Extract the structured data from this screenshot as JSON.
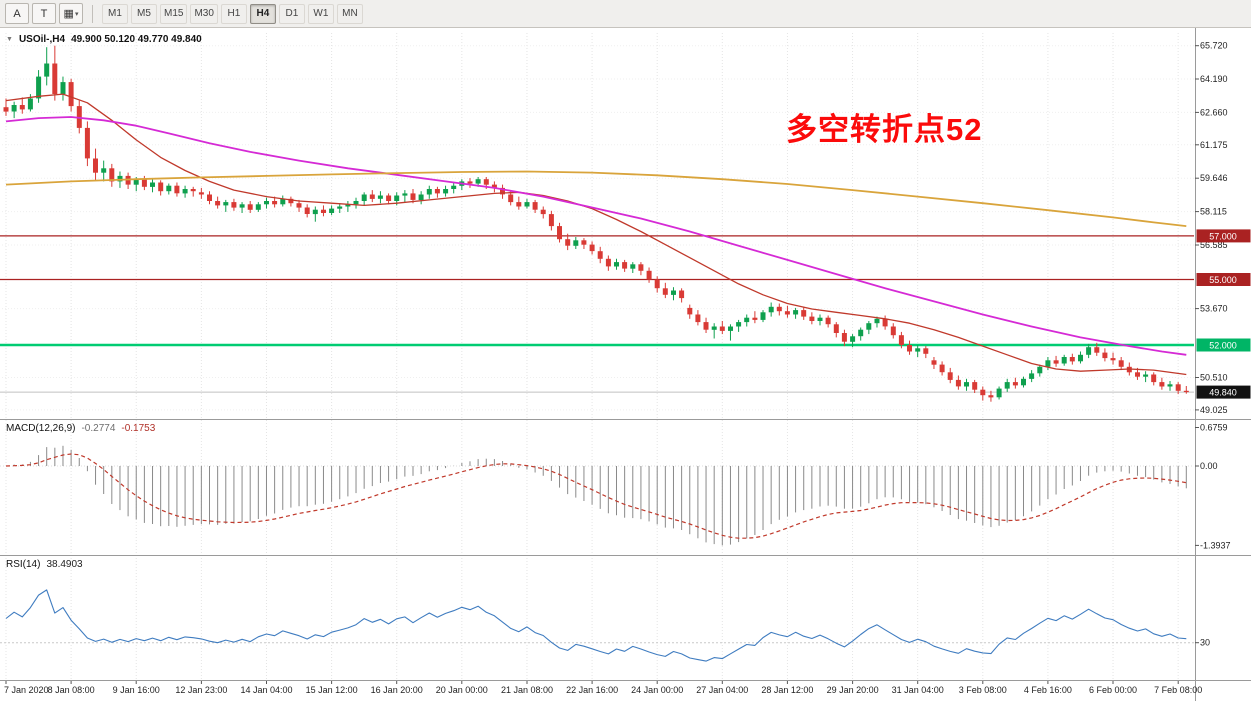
{
  "toolbar": {
    "tools": [
      {
        "name": "pointer-tool",
        "label": "A"
      },
      {
        "name": "text-tool",
        "label": "T"
      },
      {
        "name": "objects-tool",
        "label": "▦",
        "caret": "▾"
      }
    ],
    "timeframes": [
      {
        "label": "M1"
      },
      {
        "label": "M5"
      },
      {
        "label": "M15"
      },
      {
        "label": "M30"
      },
      {
        "label": "H1"
      },
      {
        "label": "H4",
        "active": true
      },
      {
        "label": "D1"
      },
      {
        "label": "W1"
      },
      {
        "label": "MN"
      }
    ]
  },
  "header": {
    "symbol_title": "USOil-,H4",
    "ohlc_text": "49.900 50.120 49.770 49.840"
  },
  "annotation": {
    "text": "多空转折点52"
  },
  "macd": {
    "title": "MACD(12,26,9)",
    "value_main": "-0.2774",
    "value_signal": "-0.1753",
    "params": [
      12,
      26,
      9
    ],
    "axis_labels": [
      {
        "text": "0.6759",
        "value": 0.6759
      },
      {
        "text": "0.00",
        "value": 0
      },
      {
        "text": "-1.3937",
        "value": -1.3937
      }
    ]
  },
  "rsi": {
    "title": "RSI(14)",
    "value": "38.4903",
    "period": 14,
    "levels": [
      {
        "text": "30",
        "value": 30
      }
    ]
  },
  "colors": {
    "bull": "#0fa04e",
    "bear": "#d93a35",
    "ma_fast": "#c0392b",
    "ma_mid": "#d52ad5",
    "ma_slow": "#d9a43b",
    "macd_hist": "#8a8a8a",
    "macd_signal": "#c0392b",
    "rsi_line": "#3f7cc0",
    "level_red": "#aa2222",
    "level_green": "#00cc72",
    "current_price_line": "#c0c0c0",
    "annotation_red": "#fb0b0b"
  },
  "chart_data": {
    "type": "candlestick",
    "symbol": "USOil",
    "timeframe": "H4",
    "label_step": 8,
    "time_labels": [
      "7 Jan 2020",
      "8 Jan 08:00",
      "9 Jan 16:00",
      "12 Jan 23:00",
      "14 Jan 04:00",
      "15 Jan 12:00",
      "16 Jan 20:00",
      "20 Jan 00:00",
      "21 Jan 08:00",
      "22 Jan 16:00",
      "24 Jan 00:00",
      "27 Jan 04:00",
      "28 Jan 12:00",
      "29 Jan 20:00",
      "31 Jan 04:00",
      "3 Feb 08:00",
      "4 Feb 16:00",
      "6 Feb 00:00",
      "7 Feb 08:00"
    ],
    "price_axis_labels": [
      {
        "text": "65.720",
        "price": 65.72
      },
      {
        "text": "64.190",
        "price": 64.19
      },
      {
        "text": "62.660",
        "price": 62.66
      },
      {
        "text": "61.175",
        "price": 61.175
      },
      {
        "text": "59.646",
        "price": 59.646
      },
      {
        "text": "58.115",
        "price": 58.115
      },
      {
        "text": "56.585",
        "price": 56.585
      },
      {
        "text": "53.670",
        "price": 53.67
      },
      {
        "text": "50.510",
        "price": 50.51
      },
      {
        "text": "49.025",
        "price": 49.025
      }
    ],
    "badges": [
      {
        "text": "57.000",
        "price": 57.0,
        "bg": "#aa2222",
        "fg": "#ffffff"
      },
      {
        "text": "55.000",
        "price": 55.0,
        "bg": "#aa2222",
        "fg": "#ffffff"
      },
      {
        "text": "52.000",
        "price": 52.0,
        "bg": "#00b566",
        "fg": "#ffffff"
      },
      {
        "text": "49.840",
        "price": 49.84,
        "bg": "#111111",
        "fg": "#ffffff"
      }
    ],
    "horizontal_lines": [
      {
        "price": 57.0,
        "color": "#aa2222",
        "width": 1.3
      },
      {
        "price": 55.0,
        "color": "#aa2222",
        "width": 1.3
      },
      {
        "price": 52.0,
        "color": "#00cc72",
        "width": 2.5
      },
      {
        "price": 49.84,
        "color": "#c0c0c0",
        "width": 1
      }
    ],
    "moving_averages": {
      "fast": [
        [
          0,
          63.2
        ],
        [
          4,
          63.4
        ],
        [
          7,
          63.5
        ],
        [
          10,
          63.1
        ],
        [
          13,
          62.3
        ],
        [
          16,
          61.4
        ],
        [
          19,
          60.6
        ],
        [
          22,
          60.0
        ],
        [
          25,
          59.5
        ],
        [
          28,
          59.1
        ],
        [
          32,
          58.8
        ],
        [
          36,
          58.6
        ],
        [
          40,
          58.5
        ],
        [
          44,
          58.4
        ],
        [
          48,
          58.5
        ],
        [
          52,
          58.65
        ],
        [
          56,
          58.8
        ],
        [
          60,
          58.95
        ],
        [
          63,
          59.0
        ],
        [
          66,
          58.85
        ],
        [
          69,
          58.6
        ],
        [
          72,
          58.25
        ],
        [
          75,
          57.75
        ],
        [
          78,
          57.2
        ],
        [
          81,
          56.6
        ],
        [
          84,
          56.0
        ],
        [
          87,
          55.4
        ],
        [
          90,
          54.8
        ],
        [
          93,
          54.3
        ],
        [
          96,
          53.9
        ],
        [
          99,
          53.65
        ],
        [
          102,
          53.5
        ],
        [
          105,
          53.35
        ],
        [
          108,
          53.2
        ],
        [
          111,
          53.0
        ],
        [
          114,
          52.7
        ],
        [
          117,
          52.35
        ],
        [
          120,
          51.95
        ],
        [
          123,
          51.55
        ],
        [
          126,
          51.15
        ],
        [
          129,
          50.9
        ],
        [
          132,
          50.8
        ],
        [
          135,
          50.85
        ],
        [
          138,
          50.9
        ],
        [
          141,
          50.85
        ],
        [
          145,
          50.65
        ]
      ],
      "mid": [
        [
          0,
          62.25
        ],
        [
          4,
          62.4
        ],
        [
          8,
          62.45
        ],
        [
          12,
          62.3
        ],
        [
          16,
          62.05
        ],
        [
          20,
          61.7
        ],
        [
          25,
          61.25
        ],
        [
          30,
          60.85
        ],
        [
          36,
          60.45
        ],
        [
          42,
          60.1
        ],
        [
          48,
          59.8
        ],
        [
          54,
          59.5
        ],
        [
          60,
          59.2
        ],
        [
          66,
          58.8
        ],
        [
          72,
          58.3
        ],
        [
          78,
          57.8
        ],
        [
          84,
          57.2
        ],
        [
          90,
          56.55
        ],
        [
          96,
          55.9
        ],
        [
          102,
          55.25
        ],
        [
          108,
          54.6
        ],
        [
          114,
          54.0
        ],
        [
          120,
          53.4
        ],
        [
          126,
          52.85
        ],
        [
          132,
          52.35
        ],
        [
          138,
          51.95
        ],
        [
          142,
          51.7
        ],
        [
          145,
          51.55
        ]
      ],
      "slow": [
        [
          0,
          59.35
        ],
        [
          8,
          59.5
        ],
        [
          16,
          59.6
        ],
        [
          24,
          59.68
        ],
        [
          32,
          59.75
        ],
        [
          40,
          59.82
        ],
        [
          48,
          59.88
        ],
        [
          56,
          59.93
        ],
        [
          64,
          59.95
        ],
        [
          72,
          59.9
        ],
        [
          80,
          59.78
        ],
        [
          88,
          59.6
        ],
        [
          96,
          59.38
        ],
        [
          104,
          59.1
        ],
        [
          112,
          58.8
        ],
        [
          120,
          58.5
        ],
        [
          128,
          58.18
        ],
        [
          136,
          57.85
        ],
        [
          141,
          57.62
        ],
        [
          145,
          57.45
        ]
      ]
    },
    "candles": [
      [
        62.9,
        63.3,
        62.5,
        62.7
      ],
      [
        62.7,
        63.15,
        62.4,
        63.0
      ],
      [
        63.0,
        63.35,
        62.6,
        62.8
      ],
      [
        62.8,
        63.5,
        62.7,
        63.3
      ],
      [
        63.3,
        64.6,
        63.1,
        64.3
      ],
      [
        64.3,
        65.65,
        63.9,
        64.9
      ],
      [
        64.9,
        65.72,
        63.2,
        63.5
      ],
      [
        63.5,
        64.3,
        63.2,
        64.05
      ],
      [
        64.05,
        64.2,
        62.7,
        62.95
      ],
      [
        62.95,
        63.2,
        61.7,
        61.95
      ],
      [
        61.95,
        62.25,
        60.2,
        60.55
      ],
      [
        60.55,
        61.0,
        59.55,
        59.9
      ],
      [
        59.9,
        60.45,
        59.5,
        60.1
      ],
      [
        60.1,
        60.3,
        59.25,
        59.5
      ],
      [
        59.5,
        59.95,
        59.2,
        59.75
      ],
      [
        59.75,
        59.9,
        59.15,
        59.35
      ],
      [
        59.35,
        59.7,
        59.05,
        59.6
      ],
      [
        59.6,
        59.75,
        59.1,
        59.25
      ],
      [
        59.25,
        59.6,
        59.0,
        59.45
      ],
      [
        59.45,
        59.55,
        58.85,
        59.05
      ],
      [
        59.05,
        59.4,
        58.9,
        59.3
      ],
      [
        59.3,
        59.45,
        58.8,
        58.95
      ],
      [
        58.95,
        59.3,
        58.75,
        59.15
      ],
      [
        59.15,
        59.25,
        58.8,
        59.05
      ],
      [
        59.0,
        59.2,
        58.7,
        58.9
      ],
      [
        58.9,
        59.05,
        58.45,
        58.6
      ],
      [
        58.6,
        58.8,
        58.25,
        58.4
      ],
      [
        58.4,
        58.65,
        58.1,
        58.55
      ],
      [
        58.55,
        58.7,
        58.15,
        58.3
      ],
      [
        58.3,
        58.55,
        58.05,
        58.45
      ],
      [
        58.45,
        58.6,
        58.05,
        58.2
      ],
      [
        58.2,
        58.55,
        58.1,
        58.45
      ],
      [
        58.45,
        58.75,
        58.25,
        58.6
      ],
      [
        58.6,
        58.8,
        58.3,
        58.45
      ],
      [
        58.45,
        58.85,
        58.35,
        58.7
      ],
      [
        58.7,
        58.8,
        58.35,
        58.5
      ],
      [
        58.5,
        58.65,
        58.1,
        58.3
      ],
      [
        58.3,
        58.45,
        57.85,
        58.0
      ],
      [
        58.0,
        58.35,
        57.65,
        58.2
      ],
      [
        58.2,
        58.4,
        57.9,
        58.05
      ],
      [
        58.05,
        58.4,
        57.95,
        58.25
      ],
      [
        58.25,
        58.5,
        58.05,
        58.35
      ],
      [
        58.35,
        58.6,
        58.1,
        58.45
      ],
      [
        58.45,
        58.75,
        58.25,
        58.6
      ],
      [
        58.6,
        59.0,
        58.4,
        58.9
      ],
      [
        58.9,
        59.1,
        58.55,
        58.7
      ],
      [
        58.7,
        59.05,
        58.5,
        58.85
      ],
      [
        58.85,
        58.95,
        58.45,
        58.6
      ],
      [
        58.6,
        59.0,
        58.4,
        58.85
      ],
      [
        58.85,
        59.1,
        58.55,
        58.95
      ],
      [
        58.95,
        59.15,
        58.5,
        58.65
      ],
      [
        58.65,
        59.05,
        58.45,
        58.9
      ],
      [
        58.9,
        59.3,
        58.7,
        59.15
      ],
      [
        59.15,
        59.25,
        58.75,
        58.95
      ],
      [
        58.95,
        59.3,
        58.8,
        59.15
      ],
      [
        59.15,
        59.45,
        58.95,
        59.3
      ],
      [
        59.3,
        59.6,
        59.1,
        59.5
      ],
      [
        59.5,
        59.65,
        59.2,
        59.4
      ],
      [
        59.4,
        59.7,
        59.25,
        59.6
      ],
      [
        59.6,
        59.7,
        59.15,
        59.35
      ],
      [
        59.35,
        59.5,
        59.0,
        59.2
      ],
      [
        59.2,
        59.35,
        58.7,
        58.9
      ],
      [
        58.9,
        59.05,
        58.4,
        58.55
      ],
      [
        58.55,
        58.8,
        58.2,
        58.35
      ],
      [
        58.35,
        58.7,
        58.25,
        58.55
      ],
      [
        58.55,
        58.65,
        58.05,
        58.2
      ],
      [
        58.2,
        58.35,
        57.8,
        58.0
      ],
      [
        58.0,
        58.15,
        57.25,
        57.45
      ],
      [
        57.45,
        57.6,
        56.7,
        56.85
      ],
      [
        56.85,
        57.1,
        56.35,
        56.55
      ],
      [
        56.55,
        56.95,
        56.4,
        56.8
      ],
      [
        56.8,
        56.9,
        56.4,
        56.6
      ],
      [
        56.6,
        56.75,
        56.15,
        56.3
      ],
      [
        56.3,
        56.5,
        55.75,
        55.95
      ],
      [
        55.95,
        56.1,
        55.4,
        55.6
      ],
      [
        55.6,
        55.95,
        55.45,
        55.8
      ],
      [
        55.8,
        55.9,
        55.35,
        55.5
      ],
      [
        55.5,
        55.8,
        55.3,
        55.7
      ],
      [
        55.7,
        55.8,
        55.2,
        55.4
      ],
      [
        55.4,
        55.55,
        54.85,
        55.0
      ],
      [
        55.0,
        55.15,
        54.4,
        54.6
      ],
      [
        54.6,
        54.85,
        54.15,
        54.3
      ],
      [
        54.3,
        54.65,
        54.05,
        54.5
      ],
      [
        54.5,
        54.6,
        53.95,
        54.15
      ],
      [
        53.7,
        53.85,
        53.2,
        53.4
      ],
      [
        53.4,
        53.6,
        52.9,
        53.05
      ],
      [
        53.05,
        53.25,
        52.55,
        52.7
      ],
      [
        52.7,
        53.0,
        52.3,
        52.85
      ],
      [
        52.85,
        53.1,
        52.5,
        52.65
      ],
      [
        52.65,
        52.95,
        52.2,
        52.85
      ],
      [
        52.85,
        53.15,
        52.6,
        53.05
      ],
      [
        53.05,
        53.4,
        52.85,
        53.25
      ],
      [
        53.25,
        53.55,
        53.0,
        53.15
      ],
      [
        53.15,
        53.6,
        53.05,
        53.5
      ],
      [
        53.5,
        53.95,
        53.3,
        53.75
      ],
      [
        53.75,
        53.9,
        53.35,
        53.55
      ],
      [
        53.55,
        53.8,
        53.25,
        53.4
      ],
      [
        53.4,
        53.7,
        53.2,
        53.6
      ],
      [
        53.6,
        53.75,
        53.15,
        53.3
      ],
      [
        53.3,
        53.5,
        52.95,
        53.1
      ],
      [
        53.1,
        53.4,
        52.9,
        53.25
      ],
      [
        53.25,
        53.35,
        52.8,
        52.95
      ],
      [
        52.95,
        53.05,
        52.35,
        52.55
      ],
      [
        52.55,
        52.7,
        51.95,
        52.15
      ],
      [
        52.15,
        52.5,
        51.9,
        52.4
      ],
      [
        52.4,
        52.8,
        52.2,
        52.7
      ],
      [
        52.7,
        53.1,
        52.5,
        53.0
      ],
      [
        53.0,
        53.3,
        52.8,
        53.2
      ],
      [
        53.2,
        53.35,
        52.7,
        52.85
      ],
      [
        52.85,
        53.0,
        52.3,
        52.45
      ],
      [
        52.45,
        52.6,
        51.85,
        52.0
      ],
      [
        52.0,
        52.2,
        51.55,
        51.7
      ],
      [
        51.7,
        52.0,
        51.45,
        51.85
      ],
      [
        51.85,
        51.95,
        51.4,
        51.6
      ],
      [
        51.3,
        51.45,
        50.9,
        51.1
      ],
      [
        51.1,
        51.25,
        50.6,
        50.75
      ],
      [
        50.75,
        50.95,
        50.25,
        50.4
      ],
      [
        50.4,
        50.6,
        49.95,
        50.1
      ],
      [
        50.1,
        50.45,
        49.9,
        50.3
      ],
      [
        50.3,
        50.4,
        49.8,
        49.95
      ],
      [
        49.95,
        50.1,
        49.45,
        49.7
      ],
      [
        49.7,
        49.9,
        49.4,
        49.6
      ],
      [
        49.6,
        50.1,
        49.5,
        50.0
      ],
      [
        50.0,
        50.45,
        49.85,
        50.3
      ],
      [
        50.3,
        50.5,
        50.0,
        50.15
      ],
      [
        50.15,
        50.55,
        50.05,
        50.45
      ],
      [
        50.45,
        50.85,
        50.3,
        50.7
      ],
      [
        50.7,
        51.1,
        50.55,
        51.0
      ],
      [
        51.0,
        51.45,
        50.85,
        51.3
      ],
      [
        51.3,
        51.5,
        51.0,
        51.15
      ],
      [
        51.15,
        51.55,
        51.05,
        51.45
      ],
      [
        51.45,
        51.6,
        51.1,
        51.25
      ],
      [
        51.25,
        51.7,
        51.15,
        51.55
      ],
      [
        51.55,
        52.05,
        51.4,
        51.9
      ],
      [
        51.9,
        52.1,
        51.5,
        51.65
      ],
      [
        51.65,
        51.85,
        51.25,
        51.4
      ],
      [
        51.4,
        51.65,
        51.1,
        51.3
      ],
      [
        51.3,
        51.45,
        50.85,
        51.0
      ],
      [
        51.0,
        51.2,
        50.6,
        50.75
      ],
      [
        50.75,
        50.95,
        50.4,
        50.55
      ],
      [
        50.55,
        50.8,
        50.3,
        50.65
      ],
      [
        50.65,
        50.75,
        50.15,
        50.3
      ],
      [
        50.3,
        50.5,
        49.95,
        50.1
      ],
      [
        50.1,
        50.35,
        49.9,
        50.2
      ],
      [
        50.2,
        50.3,
        49.75,
        49.9
      ],
      [
        49.9,
        50.12,
        49.77,
        49.84
      ]
    ]
  }
}
